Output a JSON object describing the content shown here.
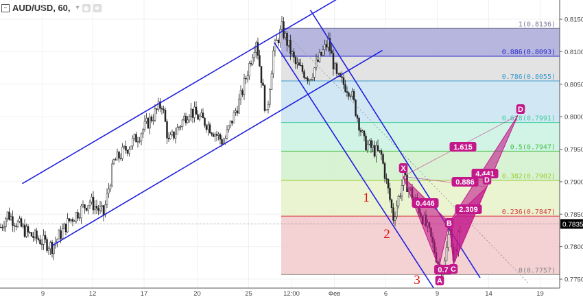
{
  "legend": {
    "symbol": "AUD/USD, 60,",
    "collapse_icon": "minus-box-icon",
    "caret_icon": "chevron-down-icon",
    "eye_icon": "eye-icon",
    "gear_icon": "gear-icon"
  },
  "chart_data": {
    "type": "candlestick",
    "symbol": "AUD/USD",
    "interval": "60",
    "ylim": [
      0.7735,
      0.818
    ],
    "y_ticks": [
      "0.8150",
      "0.8100",
      "0.8050",
      "0.8000",
      "0.7950",
      "0.7900",
      "0.7850",
      "0.7800",
      "0.7750"
    ],
    "current_price": "0.7835",
    "x_ticks": [
      {
        "label": "9",
        "bar": 25
      },
      {
        "label": "12",
        "bar": 54
      },
      {
        "label": "17",
        "bar": 84
      },
      {
        "label": "20",
        "bar": 115
      },
      {
        "label": "25",
        "bar": 145
      },
      {
        "label": "12:00",
        "bar": 170
      },
      {
        "label": "Фев",
        "bar": 195
      },
      {
        "label": "6",
        "bar": 225
      },
      {
        "label": "9",
        "bar": 255
      },
      {
        "label": "14",
        "bar": 285
      },
      {
        "label": "19",
        "bar": 315
      }
    ],
    "price_path": [
      [
        0,
        0.783
      ],
      [
        4,
        0.785
      ],
      [
        16,
        0.782
      ],
      [
        30,
        0.78
      ],
      [
        40,
        0.784
      ],
      [
        52,
        0.787
      ],
      [
        60,
        0.785
      ],
      [
        66,
        0.793
      ],
      [
        80,
        0.797
      ],
      [
        94,
        0.802
      ],
      [
        98,
        0.796
      ],
      [
        110,
        0.801
      ],
      [
        120,
        0.799
      ],
      [
        130,
        0.796
      ],
      [
        140,
        0.803
      ],
      [
        149,
        0.812
      ],
      [
        155,
        0.8
      ],
      [
        159,
        0.81
      ],
      [
        164,
        0.8136
      ],
      [
        172,
        0.808
      ],
      [
        180,
        0.806
      ],
      [
        191,
        0.8115
      ],
      [
        196,
        0.806
      ],
      [
        204,
        0.804
      ],
      [
        212,
        0.796
      ],
      [
        222,
        0.794
      ],
      [
        229,
        0.7845
      ],
      [
        235,
        0.7905
      ],
      [
        242,
        0.787
      ],
      [
        250,
        0.782
      ],
      [
        256,
        0.7768
      ],
      [
        259,
        0.7775
      ],
      [
        262,
        0.7837
      ],
      [
        264,
        0.7773
      ],
      [
        268,
        0.783
      ]
    ],
    "fibonacci": [
      {
        "level": "1",
        "price": "0.8136",
        "color": "#7a7a9a",
        "fill": "#a9a9d9"
      },
      {
        "level": "0.886",
        "price": "0.8093",
        "color": "#2a2acc",
        "fill": "#dedede"
      },
      {
        "level": "0.786",
        "price": "0.8055",
        "color": "#3b9bd0",
        "fill": "#c9e4f2"
      },
      {
        "level": "0.618",
        "price": "0.7991",
        "color": "#3fcf9a",
        "fill": "#c9f2e3"
      },
      {
        "level": "0.5",
        "price": "0.7947",
        "color": "#46c046",
        "fill": "#d1f0cd"
      },
      {
        "level": "0.382",
        "price": "0.7902",
        "color": "#9acd32",
        "fill": "#e8f2c9"
      },
      {
        "level": "0.236",
        "price": "0.7847",
        "color": "#d83a3a",
        "fill": "#f2c9cb"
      },
      {
        "level": "0",
        "price": "0.7757",
        "color": "#888888",
        "fill": null
      }
    ],
    "fib_start_bar": 164,
    "trend_lines": [
      {
        "from": [
          13,
          0.7897
        ],
        "to": [
          196,
          0.818
        ],
        "color": "#1f1fdd"
      },
      {
        "from": [
          30,
          0.7801
        ],
        "to": [
          223,
          0.8102
        ],
        "color": "#1f1fdd"
      },
      {
        "from": [
          181,
          0.8164
        ],
        "to": [
          280,
          0.7752
        ],
        "color": "#1f1fdd"
      },
      {
        "from": [
          160,
          0.8114
        ],
        "to": [
          253,
          0.7736
        ],
        "color": "#1f1fdd"
      }
    ],
    "harmonic": {
      "color": "#c2188a",
      "points": {
        "X": [
          235,
          0.7908
        ],
        "A": [
          256,
          0.7768
        ],
        "B": [
          262,
          0.7837
        ],
        "C": [
          264.5,
          0.7773
        ],
        "D": [
          284,
          0.7892
        ],
        "D2": [
          302,
          0.8002
        ]
      },
      "ratios": [
        "0.446",
        "0.886",
        "1.615",
        "4.441",
        "2.309",
        "0.7"
      ],
      "labels": [
        "X",
        "A",
        "B",
        "C",
        "D",
        "D"
      ]
    },
    "wave_labels": [
      "1",
      "2",
      "3"
    ]
  }
}
